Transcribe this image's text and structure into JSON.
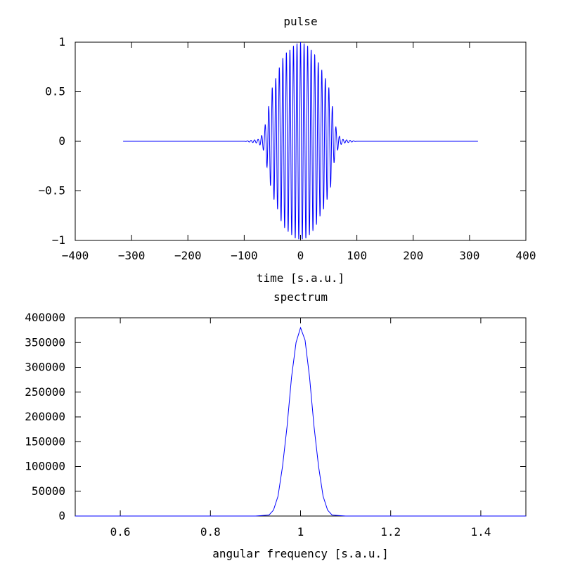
{
  "chart_data": [
    {
      "type": "line",
      "title": "pulse",
      "xlabel": "time [s.a.u.]",
      "ylabel": "",
      "xlim": [
        -400,
        400
      ],
      "ylim": [
        -1,
        1
      ],
      "xticks": [
        -400,
        -300,
        -200,
        -100,
        0,
        100,
        200,
        300,
        400
      ],
      "xtick_labels": [
        "−400",
        "−300",
        "−200",
        "−100",
        "0",
        "100",
        "200",
        "300",
        "400"
      ],
      "yticks": [
        1,
        0.5,
        0,
        -0.5,
        -1
      ],
      "ytick_labels": [
        "1",
        "0.5",
        "0",
        "−0.5",
        "−1"
      ],
      "grid": false,
      "line_color": "#0000ff",
      "series": [
        {
          "x": [
            -315,
            -100,
            -75,
            -70,
            -65,
            -60,
            -55,
            -50,
            -45,
            -40,
            -35,
            -30,
            -25,
            -20,
            -15,
            -10,
            -5,
            0,
            5,
            10,
            15,
            20,
            25,
            30,
            35,
            40,
            45,
            50,
            55,
            60,
            65,
            70,
            75,
            100,
            315
          ],
          "envelope": [
            0,
            0,
            0.02,
            0.05,
            0.1,
            0.25,
            0.4,
            0.55,
            0.62,
            0.7,
            0.8,
            0.86,
            0.9,
            0.92,
            0.95,
            0.98,
            0.99,
            1.0,
            0.99,
            0.98,
            0.95,
            0.92,
            0.88,
            0.82,
            0.75,
            0.7,
            0.62,
            0.55,
            0.42,
            0.2,
            0.1,
            0.04,
            0.02,
            0,
            0
          ],
          "carrier_angular_frequency": 1.0
        }
      ]
    },
    {
      "type": "line",
      "title": "spectrum",
      "xlabel": "angular frequency [s.a.u.]",
      "ylabel": "",
      "xlim": [
        0.5,
        1.5
      ],
      "ylim": [
        0,
        400000
      ],
      "xticks": [
        0.6,
        0.8,
        1.0,
        1.2,
        1.4
      ],
      "xtick_labels": [
        "0.6",
        "0.8",
        "1",
        "1.2",
        "1.4"
      ],
      "yticks": [
        400000,
        350000,
        300000,
        250000,
        200000,
        150000,
        100000,
        50000,
        0
      ],
      "ytick_labels": [
        "400000",
        "350000",
        "300000",
        "250000",
        "200000",
        "150000",
        "100000",
        "50000",
        "0"
      ],
      "grid": false,
      "line_color": "#0000ff",
      "series": [
        {
          "x": [
            0.5,
            0.9,
            0.93,
            0.94,
            0.95,
            0.96,
            0.97,
            0.98,
            0.99,
            1.0,
            1.01,
            1.02,
            1.03,
            1.04,
            1.05,
            1.06,
            1.07,
            1.1,
            1.5
          ],
          "values": [
            0,
            0,
            2000,
            12000,
            40000,
            100000,
            180000,
            280000,
            350000,
            380000,
            355000,
            280000,
            180000,
            100000,
            40000,
            12000,
            2000,
            0,
            0
          ]
        }
      ]
    }
  ]
}
